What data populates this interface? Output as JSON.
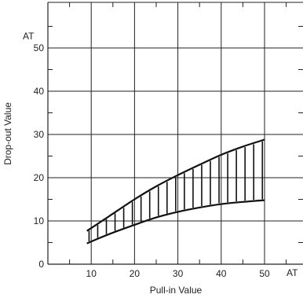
{
  "chart_data": {
    "type": "area",
    "xlabel": "Pull-in Value",
    "ylabel": "Drop-out Value",
    "x_unit": "AT",
    "y_unit": "AT",
    "xlim": [
      0,
      50
    ],
    "ylim": [
      0,
      55
    ],
    "x_ticks": [
      10,
      20,
      30,
      40,
      50
    ],
    "y_ticks": [
      0,
      10,
      20,
      30,
      40,
      50
    ],
    "grid": true,
    "series": [
      {
        "values": [
          {
            "x": 9,
            "y": 7.7
          },
          {
            "x": 14,
            "y": 11.0
          },
          {
            "x": 20,
            "y": 15.0
          },
          {
            "x": 25,
            "y": 18.0
          },
          {
            "x": 30,
            "y": 20.6
          },
          {
            "x": 35,
            "y": 23.0
          },
          {
            "x": 40,
            "y": 25.3
          },
          {
            "x": 45,
            "y": 27.2
          },
          {
            "x": 50,
            "y": 28.8
          }
        ]
      },
      {
        "values": [
          {
            "x": 9,
            "y": 4.8
          },
          {
            "x": 14,
            "y": 6.9
          },
          {
            "x": 20,
            "y": 9.1
          },
          {
            "x": 25,
            "y": 10.8
          },
          {
            "x": 30,
            "y": 12.1
          },
          {
            "x": 35,
            "y": 13.1
          },
          {
            "x": 40,
            "y": 13.9
          },
          {
            "x": 45,
            "y": 14.4
          },
          {
            "x": 50,
            "y": 14.8
          }
        ]
      }
    ],
    "hatch_x": [
      9.5,
      11.5,
      13.5,
      15.5,
      17.5,
      19.5,
      21.5,
      23.5,
      25.5,
      27.5,
      29.5,
      31.5,
      33.5,
      35.5,
      37.5,
      39.5,
      41.5,
      43.5,
      45.5,
      47.5,
      49.5
    ]
  }
}
